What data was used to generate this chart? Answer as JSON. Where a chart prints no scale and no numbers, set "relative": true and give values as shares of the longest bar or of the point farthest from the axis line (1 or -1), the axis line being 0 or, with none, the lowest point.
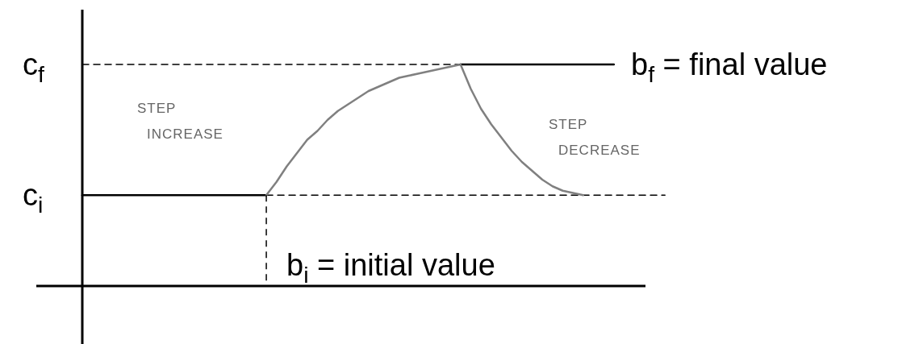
{
  "chart_data": {
    "type": "line",
    "relative": true,
    "grid": false,
    "tick_labels": false,
    "categories": [
      null,
      null,
      null,
      null,
      null,
      null,
      null,
      null,
      null,
      null,
      null,
      null,
      null,
      null,
      null,
      null,
      null,
      null,
      null,
      null,
      null,
      null,
      null,
      null,
      null,
      null,
      null,
      null,
      null,
      null,
      null,
      null,
      null,
      null,
      null,
      null,
      null,
      null,
      null,
      null,
      null,
      null,
      null,
      null,
      null,
      null,
      null,
      null,
      null,
      null,
      null,
      null,
      null,
      null,
      null,
      null,
      null,
      null
    ],
    "series": [
      {
        "color": "#000000",
        "line_style": "dashed",
        "values": [
          1,
          1,
          1,
          1,
          1,
          1,
          1,
          1,
          1,
          1,
          1,
          1,
          1,
          1,
          1,
          1,
          1,
          1,
          1,
          1,
          1,
          1,
          1,
          1,
          1,
          1,
          1,
          1,
          1,
          1,
          1,
          1,
          1,
          1,
          1,
          1,
          1,
          1,
          null,
          null,
          null,
          null,
          null,
          null,
          null,
          null,
          null,
          null,
          null,
          null,
          null,
          null,
          null,
          null,
          null,
          null,
          null,
          null
        ]
      },
      {
        "color": "#000000",
        "line_style": "dashed",
        "values": [
          null,
          null,
          null,
          null,
          null,
          null,
          null,
          null,
          null,
          null,
          null,
          null,
          null,
          null,
          null,
          null,
          null,
          null,
          0.41,
          0.41,
          0.41,
          0.41,
          0.41,
          0.41,
          0.41,
          0.41,
          0.41,
          0.41,
          0.41,
          0.41,
          0.41,
          0.41,
          0.41,
          0.41,
          0.41,
          0.41,
          0.41,
          0.41,
          0.41,
          0.41,
          0.41,
          0.41,
          0.41,
          0.41,
          0.41,
          0.41,
          0.41,
          0.41,
          0.41,
          0.41,
          0.41,
          0.41,
          0.41,
          0.41,
          0.41,
          0.41,
          0.41,
          0.41
        ]
      },
      {
        "color": "#000000",
        "line_style": "solid",
        "values": [
          0.41,
          0.41,
          0.41,
          0.41,
          0.41,
          0.41,
          0.41,
          0.41,
          0.41,
          0.41,
          0.41,
          0.41,
          0.41,
          0.41,
          0.41,
          0.41,
          0.41,
          0.41,
          0.41,
          null,
          null,
          null,
          null,
          null,
          null,
          null,
          null,
          null,
          null,
          null,
          null,
          null,
          null,
          null,
          null,
          null,
          null,
          null,
          null,
          null,
          null,
          null,
          null,
          null,
          null,
          null,
          null,
          null,
          null,
          null,
          null,
          null,
          null,
          null,
          null,
          null,
          null,
          null
        ]
      },
      {
        "color": "#808080",
        "line_style": "solid",
        "values": [
          null,
          null,
          null,
          null,
          null,
          null,
          null,
          null,
          null,
          null,
          null,
          null,
          null,
          null,
          null,
          null,
          null,
          null,
          0.41,
          0.47,
          0.54,
          0.6,
          0.66,
          0.7,
          0.75,
          0.79,
          0.82,
          0.85,
          0.88,
          0.9,
          0.92,
          0.94,
          0.95,
          0.96,
          0.97,
          0.98,
          0.99,
          1,
          null,
          null,
          null,
          null,
          null,
          null,
          null,
          null,
          null,
          null,
          null,
          null,
          null,
          null,
          null,
          null,
          null,
          null,
          null,
          null
        ]
      },
      {
        "color": "#000000",
        "line_style": "solid",
        "values": [
          null,
          null,
          null,
          null,
          null,
          null,
          null,
          null,
          null,
          null,
          null,
          null,
          null,
          null,
          null,
          null,
          null,
          null,
          null,
          null,
          null,
          null,
          null,
          null,
          null,
          null,
          null,
          null,
          null,
          null,
          null,
          null,
          null,
          null,
          null,
          null,
          null,
          1,
          1,
          1,
          1,
          1,
          1,
          1,
          1,
          1,
          1,
          1,
          1,
          1,
          1,
          1,
          1,
          null,
          null,
          null,
          null,
          null
        ]
      },
      {
        "color": "#808080",
        "line_style": "solid",
        "values": [
          null,
          null,
          null,
          null,
          null,
          null,
          null,
          null,
          null,
          null,
          null,
          null,
          null,
          null,
          null,
          null,
          null,
          null,
          null,
          null,
          null,
          null,
          null,
          null,
          null,
          null,
          null,
          null,
          null,
          null,
          null,
          null,
          null,
          null,
          null,
          null,
          null,
          1,
          0.89,
          0.8,
          0.73,
          0.67,
          0.61,
          0.56,
          0.52,
          0.48,
          0.45,
          0.43,
          0.42,
          0.41,
          null,
          null,
          null,
          null,
          null,
          null,
          null,
          null
        ]
      }
    ],
    "annotations": [
      "c$_{f}$",
      "c$_{i}$",
      "b$_{f}$ = final value",
      "b$_{i}$ = initial value",
      "STEP\nINCREASE",
      "STEP\nDECREASE"
    ]
  }
}
